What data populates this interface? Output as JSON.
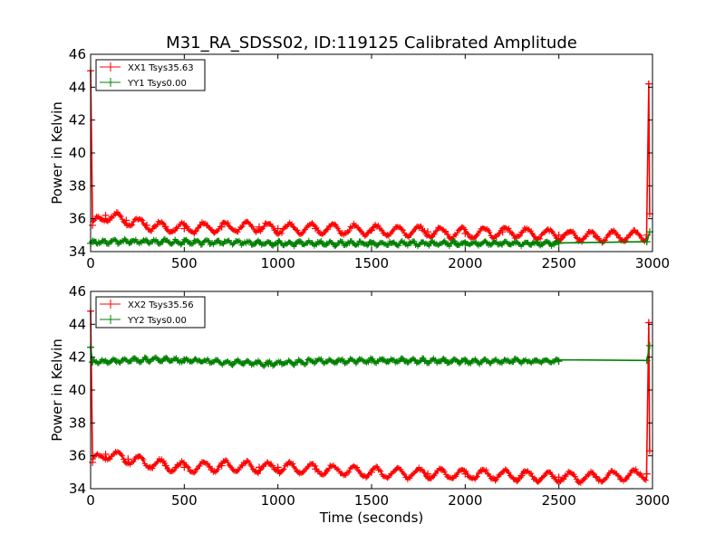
{
  "chart_data": [
    {
      "type": "line",
      "title": "M31_RA_SDSS02, ID:119125 Calibrated Amplitude",
      "xlabel": "",
      "ylabel": "Power in Kelvin",
      "xlim": [
        0,
        3000
      ],
      "ylim": [
        34,
        46
      ],
      "x_ticks": [
        "0",
        "500",
        "1000",
        "1500",
        "2000",
        "2500",
        "3000"
      ],
      "y_ticks": [
        "34",
        "36",
        "38",
        "40",
        "42",
        "44",
        "46"
      ],
      "grid": false,
      "legend_position": "top-left",
      "marker": "plus",
      "series": [
        {
          "name": "XX1 Tsys35.63",
          "color": "#ff0000",
          "x": [
            0,
            10,
            80,
            190,
            300,
            400,
            500,
            700,
            900,
            1000,
            1200,
            1500,
            1800,
            2000,
            2200,
            2500,
            2700,
            2970,
            2980,
            2985
          ],
          "y": [
            45.0,
            35.6,
            36.2,
            35.9,
            35.6,
            35.5,
            35.4,
            35.5,
            35.5,
            35.4,
            35.4,
            35.3,
            35.2,
            35.1,
            35.2,
            35.0,
            34.9,
            35.0,
            44.2,
            36.3
          ],
          "oscillation": {
            "period_s": 115,
            "amplitude_K": 0.3
          }
        },
        {
          "name": "YY1 Tsys0.00",
          "color": "#008000",
          "x": [
            0,
            10,
            500,
            1000,
            1500,
            2000,
            2500,
            2970,
            2985
          ],
          "y": [
            34.5,
            34.6,
            34.6,
            34.5,
            34.5,
            34.5,
            34.5,
            34.6,
            35.2
          ],
          "oscillation": {
            "period_s": 55,
            "amplitude_K": 0.1
          }
        }
      ]
    },
    {
      "type": "line",
      "title": "",
      "xlabel": "Time (seconds)",
      "ylabel": "Power in Kelvin",
      "xlim": [
        0,
        3000
      ],
      "ylim": [
        34,
        46
      ],
      "x_ticks": [
        "0",
        "500",
        "1000",
        "1500",
        "2000",
        "2500",
        "3000"
      ],
      "y_ticks": [
        "34",
        "36",
        "38",
        "40",
        "42",
        "44",
        "46"
      ],
      "grid": false,
      "legend_position": "top-left",
      "marker": "plus",
      "series": [
        {
          "name": "XX2 Tsys35.56",
          "color": "#ff0000",
          "x": [
            0,
            10,
            80,
            200,
            400,
            500,
            700,
            900,
            1000,
            1200,
            1500,
            1800,
            2000,
            2300,
            2500,
            2700,
            2970,
            2980,
            2985
          ],
          "y": [
            44.8,
            35.6,
            36.1,
            35.8,
            35.4,
            35.3,
            35.4,
            35.3,
            35.3,
            35.2,
            35.0,
            34.9,
            34.9,
            34.8,
            34.7,
            34.7,
            34.9,
            44.1,
            36.3
          ],
          "oscillation": {
            "period_s": 115,
            "amplitude_K": 0.3
          }
        },
        {
          "name": "YY2 Tsys0.00",
          "color": "#008000",
          "x": [
            0,
            10,
            300,
            500,
            950,
            1200,
            1500,
            2000,
            2500,
            2970,
            2985
          ],
          "y": [
            42.6,
            41.7,
            41.85,
            41.8,
            41.6,
            41.75,
            41.8,
            41.75,
            41.75,
            41.8,
            42.7
          ],
          "oscillation": {
            "period_s": 55,
            "amplitude_K": 0.1
          }
        }
      ]
    }
  ]
}
